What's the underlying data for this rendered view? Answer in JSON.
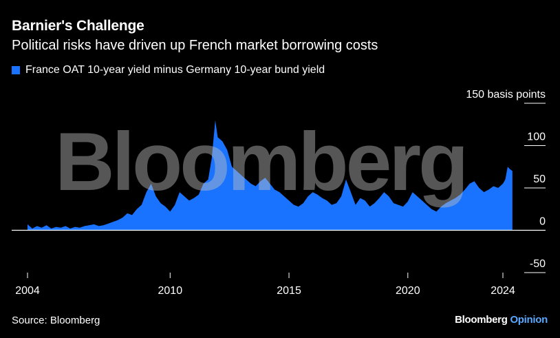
{
  "title": "Barnier's Challenge",
  "subtitle": "Political risks have driven up French market borrowing costs",
  "legend_label": "France OAT 10-year yield minus Germany 10-year bund yield",
  "source": "Source: Bloomberg",
  "brand": {
    "name": "Bloomberg",
    "suffix": "Opinion"
  },
  "watermark": "Bloomberg",
  "colors": {
    "series": "#1a73ff",
    "background": "#000000",
    "axis": "#ffffff"
  },
  "chart_data": {
    "type": "area",
    "title": "Barnier's Challenge",
    "subtitle": "Political risks have driven up French market borrowing costs",
    "ylabel": "basis points",
    "ylim": [
      -50,
      150
    ],
    "yticks": [
      -50,
      0,
      50,
      100,
      150
    ],
    "ytick_labels": [
      "-50",
      "0",
      "50",
      "100",
      "150 basis points"
    ],
    "xticks": [
      2004,
      2010,
      2015,
      2020,
      2024
    ],
    "xlim": [
      2003.4,
      2024.6
    ],
    "grid": "horizontal",
    "legend_position": "top-left",
    "series": [
      {
        "name": "France OAT 10-year yield minus Germany 10-year bund yield",
        "x": [
          2004.0,
          2004.2,
          2004.4,
          2004.6,
          2004.8,
          2005.0,
          2005.2,
          2005.4,
          2005.6,
          2005.8,
          2006.0,
          2006.2,
          2006.4,
          2006.6,
          2006.8,
          2007.0,
          2007.2,
          2007.4,
          2007.6,
          2007.8,
          2008.0,
          2008.2,
          2008.4,
          2008.6,
          2008.8,
          2009.0,
          2009.2,
          2009.4,
          2009.6,
          2009.8,
          2010.0,
          2010.2,
          2010.4,
          2010.6,
          2010.8,
          2011.0,
          2011.2,
          2011.4,
          2011.6,
          2011.75,
          2011.9,
          2012.0,
          2012.2,
          2012.4,
          2012.6,
          2012.8,
          2013.0,
          2013.2,
          2013.4,
          2013.6,
          2013.8,
          2014.0,
          2014.2,
          2014.4,
          2014.6,
          2014.8,
          2015.0,
          2015.2,
          2015.4,
          2015.6,
          2015.8,
          2016.0,
          2016.2,
          2016.4,
          2016.6,
          2016.8,
          2017.0,
          2017.2,
          2017.4,
          2017.6,
          2017.8,
          2018.0,
          2018.2,
          2018.4,
          2018.6,
          2018.8,
          2019.0,
          2019.2,
          2019.4,
          2019.6,
          2019.8,
          2020.0,
          2020.2,
          2020.4,
          2020.6,
          2020.8,
          2021.0,
          2021.2,
          2021.4,
          2021.6,
          2021.8,
          2022.0,
          2022.2,
          2022.4,
          2022.6,
          2022.8,
          2023.0,
          2023.2,
          2023.4,
          2023.6,
          2023.8,
          2024.0,
          2024.1,
          2024.2,
          2024.3,
          2024.4
        ],
        "values": [
          7,
          2,
          5,
          3,
          6,
          2,
          4,
          3,
          5,
          2,
          4,
          3,
          5,
          6,
          7,
          5,
          6,
          8,
          10,
          12,
          15,
          20,
          18,
          25,
          30,
          45,
          55,
          40,
          32,
          28,
          22,
          30,
          45,
          40,
          35,
          38,
          42,
          55,
          60,
          85,
          130,
          110,
          105,
          95,
          75,
          70,
          65,
          60,
          55,
          52,
          58,
          62,
          55,
          48,
          45,
          40,
          35,
          30,
          28,
          32,
          40,
          45,
          42,
          38,
          35,
          30,
          32,
          40,
          60,
          45,
          30,
          38,
          35,
          28,
          32,
          38,
          45,
          40,
          32,
          30,
          28,
          34,
          45,
          40,
          35,
          30,
          25,
          22,
          28,
          32,
          35,
          38,
          42,
          48,
          55,
          58,
          50,
          45,
          48,
          52,
          50,
          55,
          60,
          75,
          72,
          70
        ]
      }
    ]
  }
}
